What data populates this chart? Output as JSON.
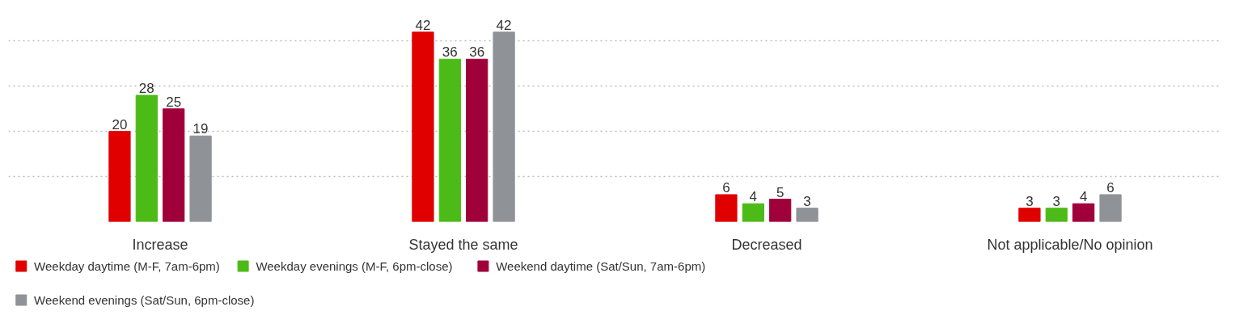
{
  "chart_data": {
    "type": "bar",
    "categories": [
      "Increase",
      "Stayed the same",
      "Decreased",
      "Not applicable/No opinion"
    ],
    "series": [
      {
        "name": "Weekday daytime (M-F, 7am-6pm)",
        "color": "#e00000",
        "values": [
          20,
          42,
          6,
          3
        ]
      },
      {
        "name": "Weekday evenings (M-F, 6pm-close)",
        "color": "#4cbb17",
        "values": [
          28,
          36,
          4,
          3
        ]
      },
      {
        "name": "Weekend daytime (Sat/Sun, 7am-6pm)",
        "color": "#a0003a",
        "values": [
          25,
          36,
          5,
          4
        ]
      },
      {
        "name": "Weekend evenings (Sat/Sun, 6pm-close)",
        "color": "#8f9296",
        "values": [
          19,
          42,
          3,
          6
        ]
      }
    ],
    "tick_labels": "x",
    "grid": "y",
    "data_labels": true,
    "legend": "bottom"
  }
}
